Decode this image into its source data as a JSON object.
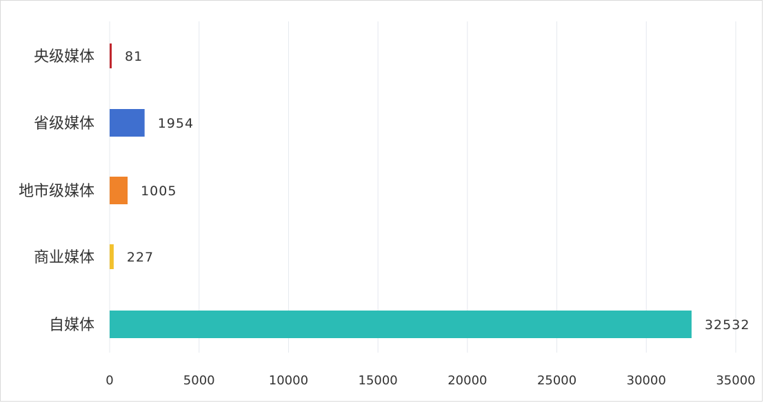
{
  "chart_data": {
    "type": "bar",
    "orientation": "horizontal",
    "categories": [
      "央级媒体",
      "省级媒体",
      "地市级媒体",
      "商业媒体",
      "自媒体"
    ],
    "values": [
      81,
      1954,
      1005,
      227,
      32532
    ],
    "data_labels": [
      "81",
      "1954",
      "1005",
      "227",
      "32532"
    ],
    "bar_colors": [
      "#c0262d",
      "#3f6fcf",
      "#f0832a",
      "#f2c12e",
      "#2bbcb5"
    ],
    "xlim": [
      0,
      35000
    ],
    "xticks": [
      0,
      5000,
      10000,
      15000,
      20000,
      25000,
      30000,
      35000
    ],
    "xtick_labels": [
      "0",
      "5000",
      "10000",
      "15000",
      "20000",
      "25000",
      "30000",
      "35000"
    ],
    "grid": true,
    "grid_color": "#e4e8ee",
    "title": "",
    "xlabel": "",
    "ylabel": ""
  }
}
